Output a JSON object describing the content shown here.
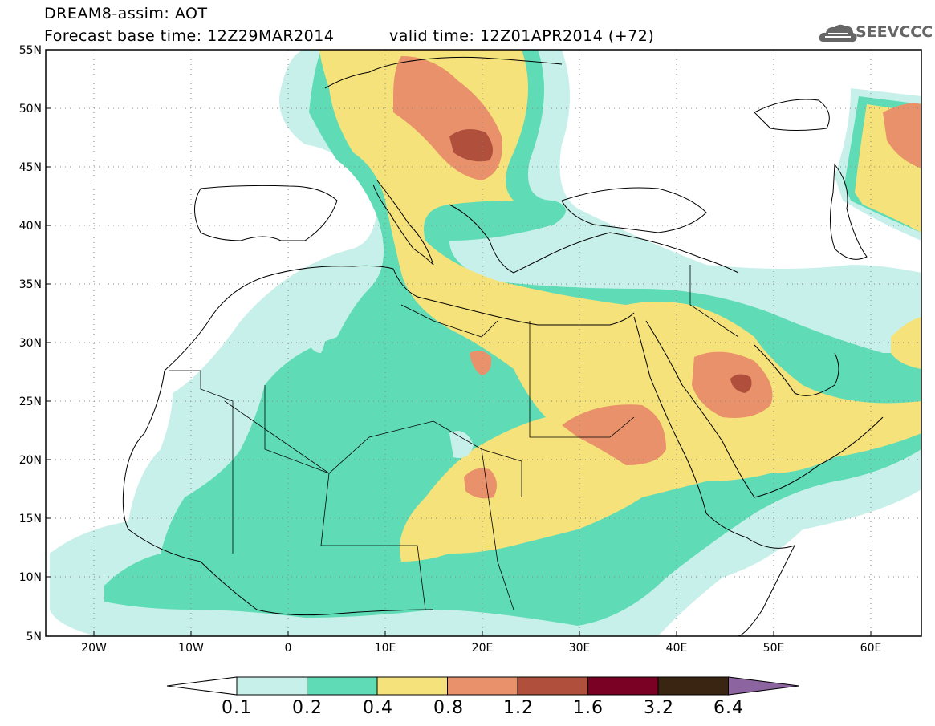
{
  "header": {
    "title": "DREAM8-assim: AOT",
    "base_time": "Forecast base time: 12Z29MAR2014",
    "valid_time": "valid time: 12Z01APR2014 (+72)",
    "logo_text": "SEEVCCC"
  },
  "axes": {
    "lat_labels": [
      "55N",
      "50N",
      "45N",
      "40N",
      "35N",
      "30N",
      "25N",
      "20N",
      "15N",
      "10N",
      "5N"
    ],
    "lon_labels": [
      "20W",
      "10W",
      "0",
      "10E",
      "20E",
      "30E",
      "40E",
      "50E",
      "60E"
    ]
  },
  "colorbar": {
    "labels": [
      "0.1",
      "0.2",
      "0.4",
      "0.8",
      "1.2",
      "1.6",
      "3.2",
      "6.4"
    ],
    "colors": [
      "#ffffff",
      "#c8f0ea",
      "#5fdcb6",
      "#f5e27a",
      "#e8916a",
      "#b0503c",
      "#7a0024",
      "#3a2412",
      "#8c64a0"
    ]
  },
  "colors": {
    "c01": "#c8f0ea",
    "c02": "#5fdcb6",
    "c04": "#f5e27a",
    "c08": "#e8916a",
    "c12": "#b0503c",
    "c16": "#7a0024"
  }
}
